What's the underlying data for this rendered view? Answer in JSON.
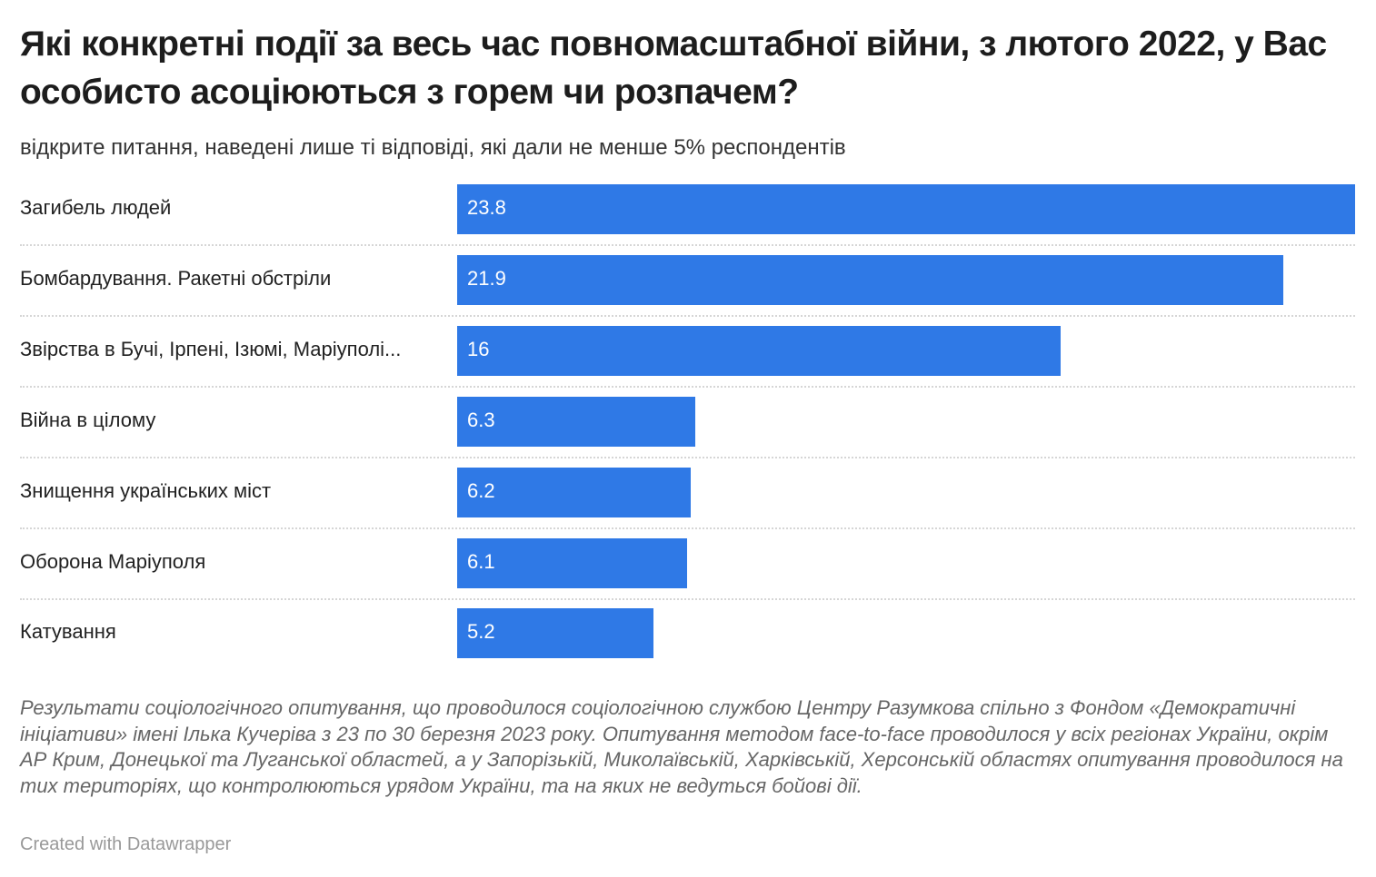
{
  "chart_data": {
    "type": "bar",
    "orientation": "horizontal",
    "title": "Які конкретні події за весь час повномасштабної війни, з лютого 2022, у Вас особисто асоціюються з горем чи розпачем?",
    "subtitle": "відкрите питання, наведені лише ті відповіді, які дали не менше 5% респондентів",
    "categories": [
      "Загибель людей",
      "Бомбардування. Ракетні обстріли",
      "Звірства в Бучі, Ірпені, Ізюмі, Маріуполі...",
      "Війна в цілому",
      "Знищення українських міст",
      "Оборона Маріуполя",
      "Катування"
    ],
    "values": [
      23.8,
      21.9,
      16,
      6.3,
      6.2,
      6.1,
      5.2
    ],
    "value_labels": [
      "23.8",
      "21.9",
      "16",
      "6.3",
      "6.2",
      "6.1",
      "5.2"
    ],
    "xlim": [
      0,
      23.8
    ],
    "bar_color": "#2f79e6",
    "grid": false
  },
  "notes": "Результати соціологічного опитування, що проводилося соціологічною службою Центру Разумкова спільно з Фондом «Демократичні ініціативи» імені Ілька Кучеріва з 23 по 30 березня 2023 року. Опитування методом face-to-face проводилося у всіх регіонах України, окрім АР Крим, Донецької та Луганської областей, а у Запорізькій, Миколаївській, Харківській, Херсонській областях опитування проводилося на тих територіях, що контролюються урядом України, та на яких не ведуться бойові дії.",
  "credit": "Created with Datawrapper"
}
